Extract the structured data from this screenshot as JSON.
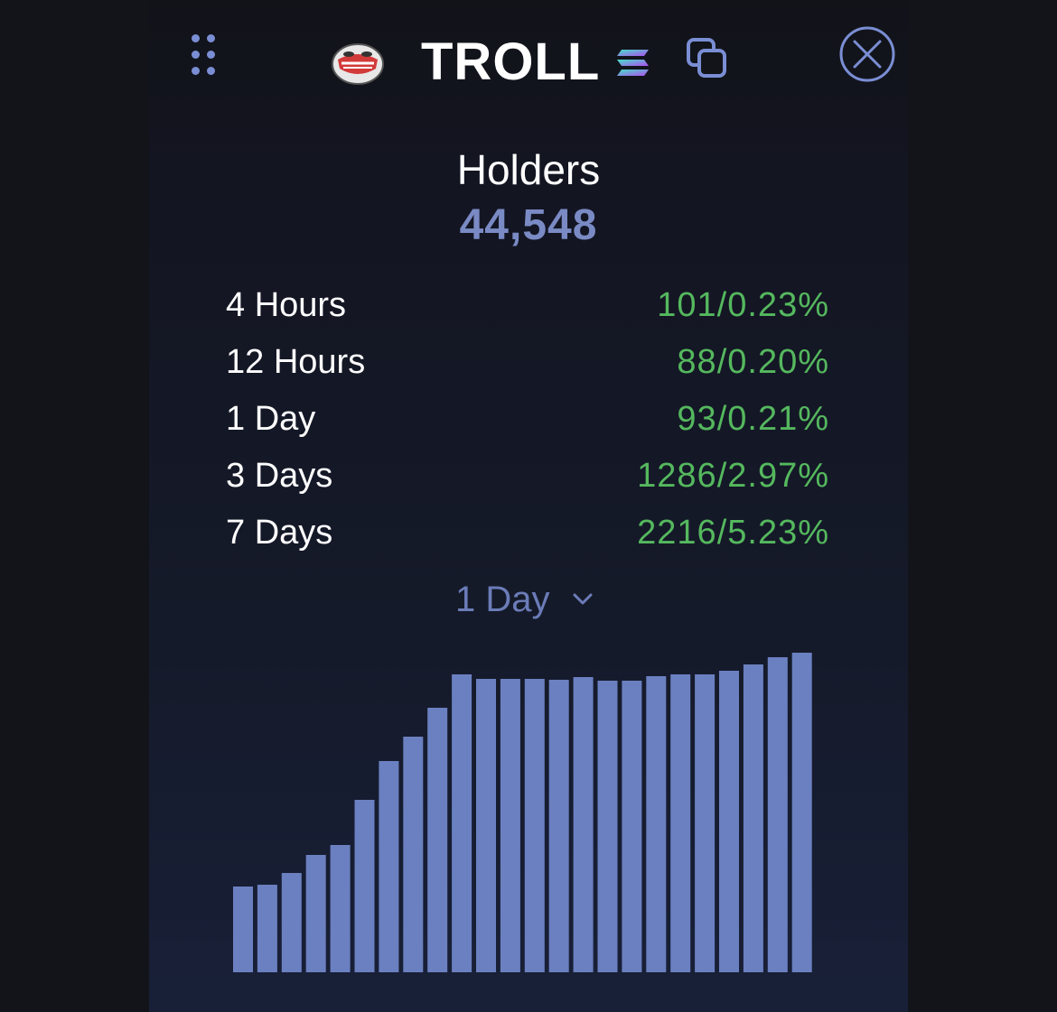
{
  "header": {
    "token_symbol": "TROLL",
    "icons": {
      "drag": "drag-handle-icon",
      "logo": "troll-face-logo",
      "chain": "solana-icon",
      "copy": "copy-icon",
      "close": "close-icon"
    }
  },
  "holders": {
    "title": "Holders",
    "count": "44,548"
  },
  "stats": [
    {
      "label": "4 Hours",
      "value": "101/0.23%"
    },
    {
      "label": "12 Hours",
      "value": "88/0.20%"
    },
    {
      "label": "1 Day",
      "value": "93/0.21%"
    },
    {
      "label": "3 Days",
      "value": "1286/2.97%"
    },
    {
      "label": "7 Days",
      "value": "2216/5.23%"
    }
  ],
  "period_selector": {
    "selected": "1 Day"
  },
  "colors": {
    "accent": "#7a8ac4",
    "positive": "#55b85e",
    "bar": "#6b80c0"
  },
  "chart_data": {
    "type": "bar",
    "values": [
      95,
      97,
      110,
      130,
      141,
      191,
      234,
      261,
      293,
      330,
      325,
      325,
      325,
      324,
      327,
      323,
      323,
      328,
      330,
      330,
      334,
      341,
      349,
      354
    ],
    "ylim": [
      0,
      354
    ],
    "grid": false,
    "legend": "none"
  }
}
